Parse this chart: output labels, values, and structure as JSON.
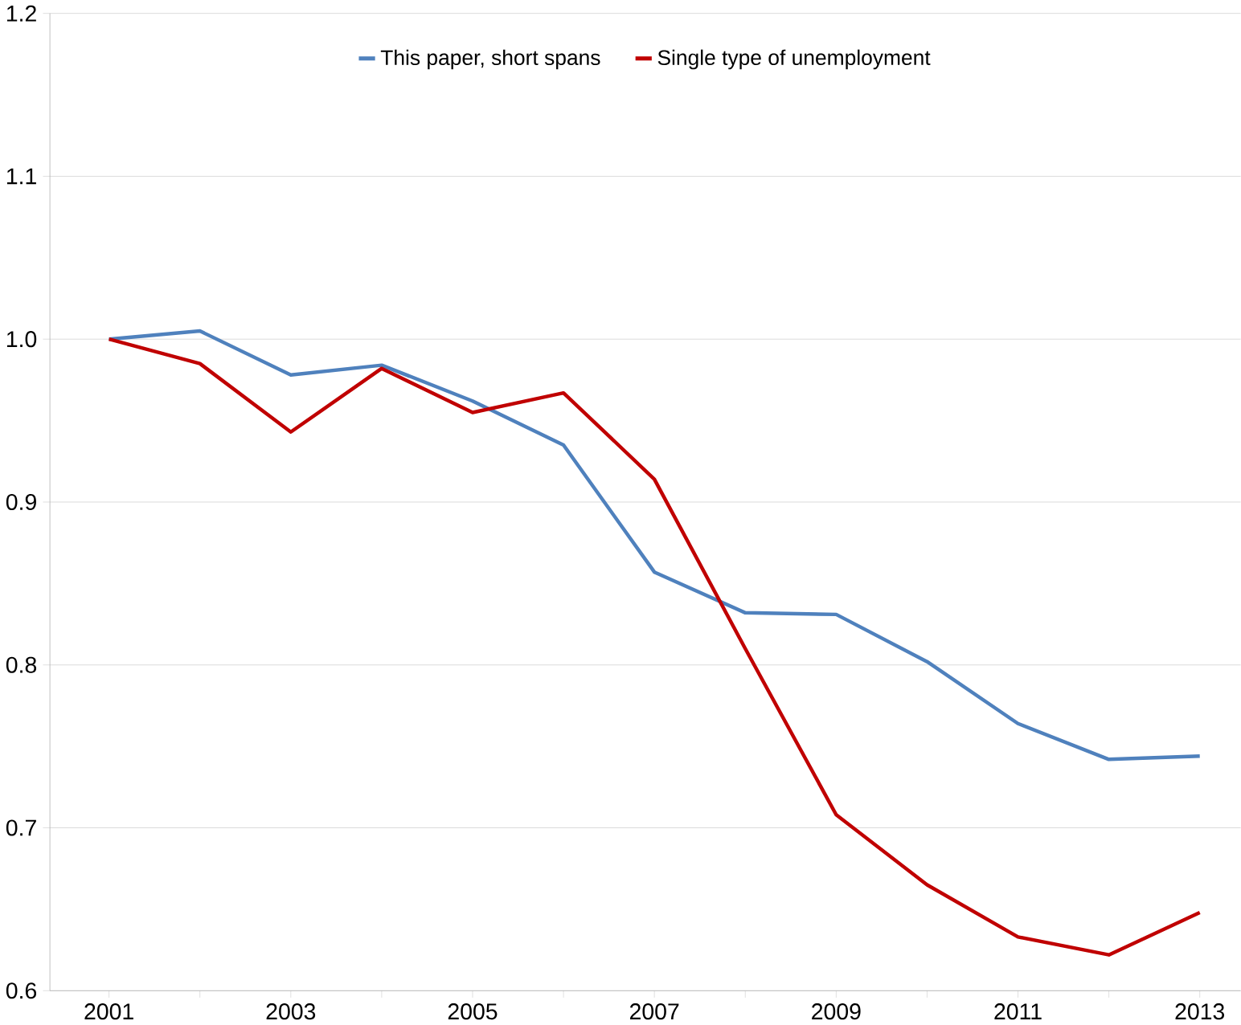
{
  "chart_data": {
    "type": "line",
    "categories": [
      "2001",
      null,
      "2003",
      null,
      "2005",
      null,
      "2007",
      null,
      "2009",
      null,
      "2011",
      null,
      "2013"
    ],
    "series": [
      {
        "name": "This paper, short spans",
        "color": "#4f81bd",
        "values": [
          1.0,
          1.005,
          0.978,
          0.984,
          0.962,
          0.935,
          0.857,
          0.832,
          0.831,
          0.802,
          0.764,
          0.742,
          0.744
        ]
      },
      {
        "name": "Single type of unemployment",
        "color": "#c00000",
        "values": [
          1.0,
          0.985,
          0.943,
          0.982,
          0.955,
          0.967,
          0.914,
          0.81,
          0.708,
          0.665,
          0.633,
          0.622,
          0.648
        ]
      }
    ],
    "ylim": [
      0.6,
      1.2
    ],
    "yticks": [
      {
        "value": 0.6,
        "label": "0.6"
      },
      {
        "value": 0.7,
        "label": "0.7"
      },
      {
        "value": 0.8,
        "label": "0.8"
      },
      {
        "value": 0.9,
        "label": "0.9"
      },
      {
        "value": 1.0,
        "label": "1.0"
      },
      {
        "value": 1.1,
        "label": "1.1"
      },
      {
        "value": 1.2,
        "label": "1.2"
      }
    ],
    "grid": "y",
    "legend": "top",
    "marker": "none",
    "line_style": "solid"
  }
}
